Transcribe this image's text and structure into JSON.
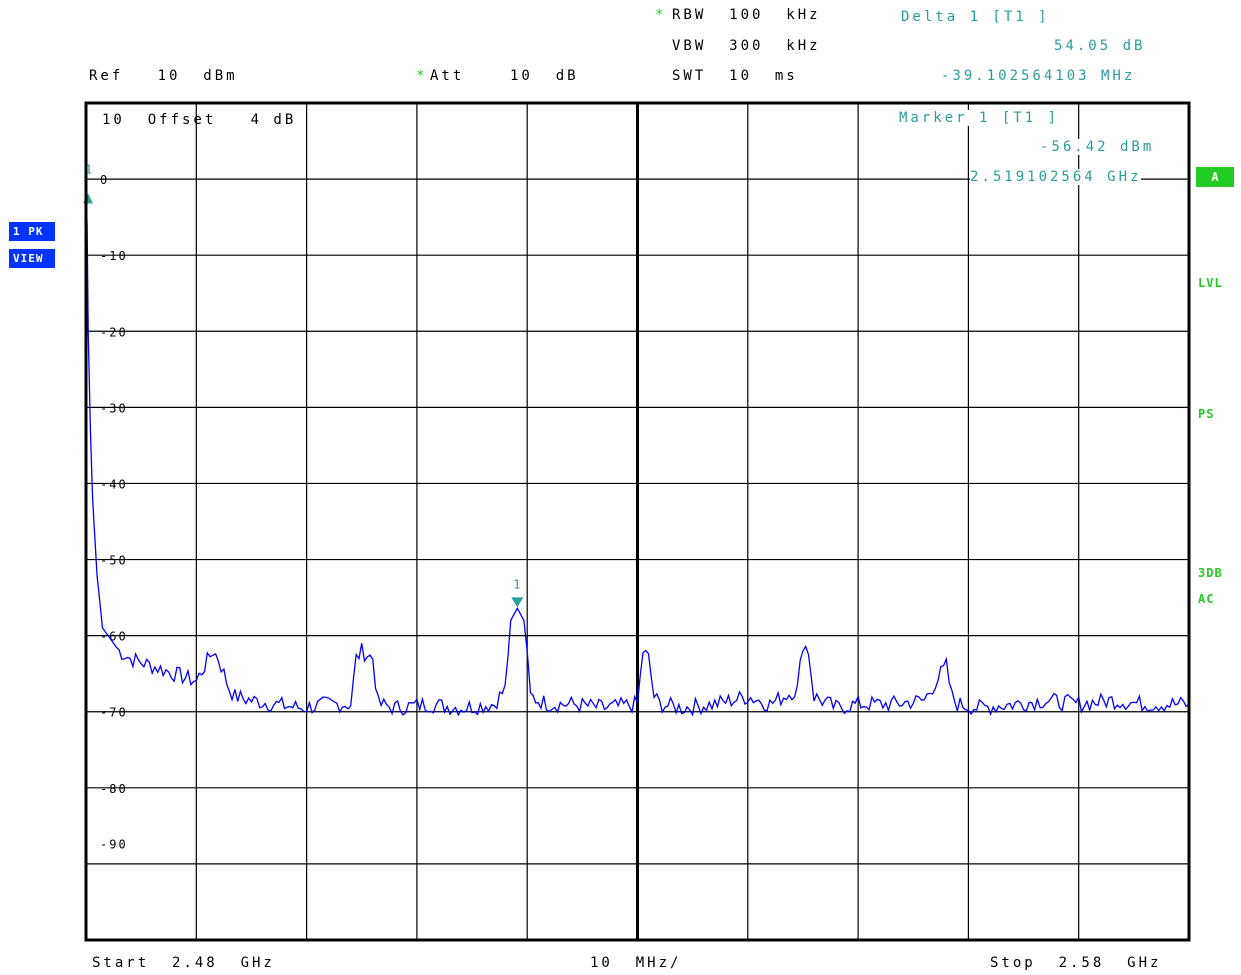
{
  "header": {
    "rbw_star": "*",
    "rbw": "RBW  100  kHz",
    "vbw": "VBW  300  kHz",
    "swt": "SWT  10  ms",
    "ref": "Ref   10  dBm",
    "att_star": "*",
    "att": "Att    10  dB",
    "delta_title": "Delta 1 [T1 ]",
    "delta_level": "54.05 dB",
    "delta_freq": "-39.102564103 MHz",
    "marker_title": "Marker 1 [T1 ]",
    "marker_level": "-56.42 dBm",
    "marker_freq": "2.519102564 GHz",
    "offset_label": "10  Offset   4 dB"
  },
  "left_badges": {
    "trace": "1 PK",
    "view": "VIEW"
  },
  "right_side": {
    "a_badge": "A",
    "lvl": "LVL",
    "ps": "PS",
    "db3": "3DB",
    "ac": "AC"
  },
  "footer": {
    "start": "Start  2.48  GHz",
    "div": "10  MHz/",
    "stop": "Stop  2.58  GHz"
  },
  "colors": {
    "trace": "#0000ff",
    "marker": "#2a9d9d",
    "grid": "#000000",
    "side_green": "#22cc22",
    "badge_blue": "#0033ff"
  },
  "chart_data": {
    "type": "line",
    "xlabel": "",
    "ylabel": "",
    "xlim": [
      2.48,
      2.58
    ],
    "ylim": [
      -100,
      10
    ],
    "y_ticks": [
      "0",
      "-10",
      "-20",
      "-30",
      "-40",
      "-50",
      "-60",
      "-70",
      "-80",
      "-90"
    ],
    "markers": [
      {
        "label": "1",
        "x": 2.48,
        "y": -2.4,
        "type": "delta-reference"
      },
      {
        "label": "1",
        "x": 2.519102564,
        "y": -56.42,
        "type": "marker"
      }
    ],
    "series": [
      {
        "x": [
          2.48,
          2.4801,
          2.4802,
          2.4804,
          2.4806,
          2.481,
          2.4815,
          2.482,
          2.483,
          2.484,
          2.486,
          2.488,
          2.49,
          2.4915,
          2.492,
          2.493,
          2.4935,
          2.495,
          2.497,
          2.4995,
          2.502,
          2.504,
          2.5045,
          2.505,
          2.506,
          2.5065,
          2.508,
          2.511,
          2.514,
          2.517,
          2.518,
          2.5185,
          2.5191,
          2.5197,
          2.5203,
          2.521,
          2.522,
          2.524,
          2.527,
          2.53,
          2.5305,
          2.531,
          2.5315,
          2.532,
          2.534,
          2.537,
          2.54,
          2.542,
          2.5445,
          2.545,
          2.5455,
          2.546,
          2.548,
          2.55,
          2.553,
          2.556,
          2.5575,
          2.558,
          2.5585,
          2.559,
          2.561,
          2.564,
          2.567,
          2.57,
          2.573,
          2.576,
          2.58
        ],
        "y": [
          -2.4,
          -6,
          -20,
          -33,
          -42,
          -52,
          -59,
          -60,
          -62,
          -63,
          -64,
          -65,
          -66,
          -62,
          -63,
          -67,
          -68,
          -68.5,
          -69,
          -69.5,
          -69,
          -69,
          -63,
          -62,
          -63,
          -69,
          -69.5,
          -69,
          -69.5,
          -69,
          -67,
          -58,
          -56.4,
          -58,
          -68,
          -68.5,
          -69,
          -69,
          -69.5,
          -69,
          -62,
          -63,
          -68,
          -69,
          -69.5,
          -69,
          -68,
          -69,
          -67,
          -61,
          -62,
          -68,
          -69.5,
          -69,
          -69,
          -68.5,
          -65,
          -64,
          -68,
          -69,
          -69.5,
          -69,
          -68.5,
          -69,
          -68.5,
          -69,
          -69
        ]
      }
    ]
  }
}
